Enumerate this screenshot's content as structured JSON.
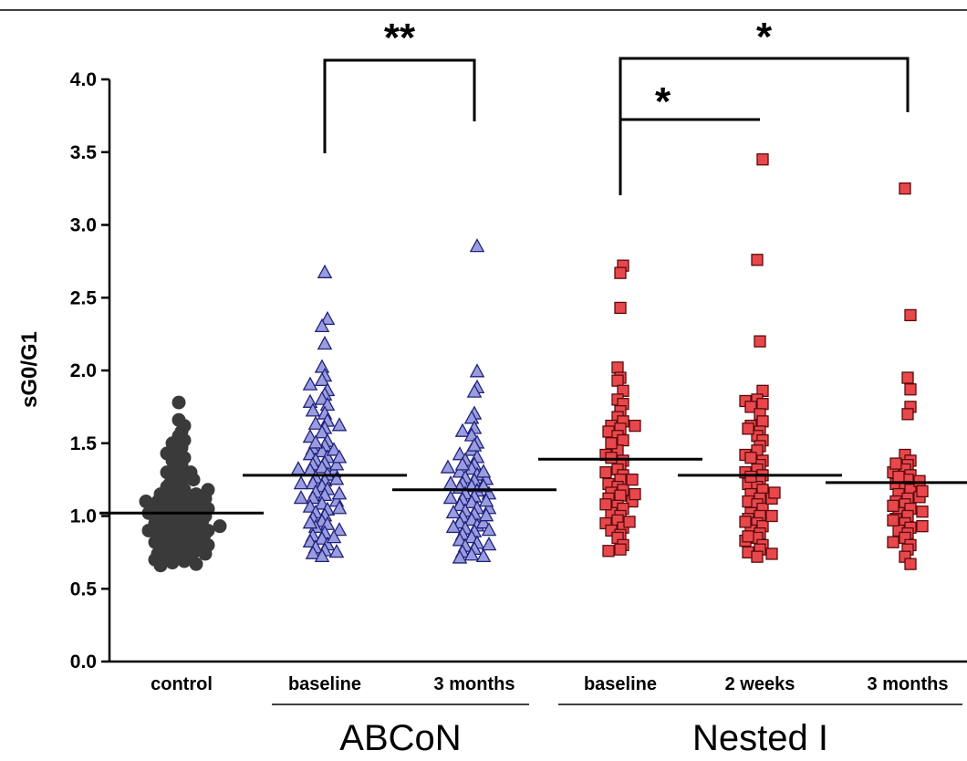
{
  "chart_data": {
    "type": "scatter",
    "ylabel": "sG0/G1",
    "ylim": [
      0,
      4.0
    ],
    "yticks": [
      "0.0",
      "0.5",
      "1.0",
      "1.5",
      "2.0",
      "2.5",
      "3.0",
      "3.5",
      "4.0"
    ],
    "categories": [
      "control",
      "baseline",
      "3 months",
      "baseline",
      "2 weeks",
      "3 months"
    ],
    "groups": [
      {
        "label": "ABCoN",
        "categories": [
          1,
          2
        ]
      },
      {
        "label": "Nested I",
        "categories": [
          3,
          4,
          5
        ]
      }
    ],
    "series": [
      {
        "category": "control",
        "marker": "circle",
        "color": "#3a3a3a",
        "mean": 1.02,
        "values": [
          1.78,
          1.66,
          1.62,
          1.58,
          1.55,
          1.52,
          1.5,
          1.47,
          1.45,
          1.43,
          1.4,
          1.38,
          1.35,
          1.33,
          1.3,
          1.28,
          1.26,
          1.24,
          1.22,
          1.2,
          1.18,
          1.17,
          1.15,
          1.14,
          1.12,
          1.11,
          1.1,
          1.09,
          1.08,
          1.07,
          1.06,
          1.05,
          1.04,
          1.03,
          1.02,
          1.01,
          1.0,
          0.99,
          0.98,
          0.97,
          0.96,
          0.95,
          0.94,
          0.93,
          0.92,
          0.91,
          0.9,
          0.89,
          0.88,
          0.87,
          0.86,
          0.85,
          0.84,
          0.83,
          0.82,
          0.8,
          0.79,
          0.78,
          0.77,
          0.76,
          0.75,
          0.74,
          0.73,
          0.72,
          0.71,
          0.7,
          0.69,
          0.68,
          0.67,
          0.66,
          0.95,
          1.0,
          1.05,
          0.9,
          1.12,
          1.2,
          0.85,
          0.78,
          1.25,
          1.3,
          0.97,
          1.08,
          1.15,
          0.88,
          0.93,
          1.02,
          0.74,
          0.8,
          1.1,
          1.18
        ]
      },
      {
        "category": "baseline",
        "group": "ABCoN",
        "marker": "triangle",
        "color": "#9a9ce0",
        "mean": 1.28,
        "values": [
          2.67,
          2.35,
          2.3,
          2.18,
          2.02,
          1.96,
          1.93,
          1.9,
          1.86,
          1.83,
          1.8,
          1.78,
          1.76,
          1.7,
          1.65,
          1.63,
          1.6,
          1.57,
          1.54,
          1.51,
          1.48,
          1.46,
          1.44,
          1.42,
          1.4,
          1.38,
          1.36,
          1.35,
          1.33,
          1.31,
          1.3,
          1.28,
          1.26,
          1.24,
          1.22,
          1.2,
          1.18,
          1.16,
          1.14,
          1.12,
          1.1,
          1.08,
          1.06,
          1.04,
          1.02,
          1.0,
          0.98,
          0.96,
          0.94,
          0.92,
          0.9,
          0.88,
          0.86,
          0.84,
          0.82,
          0.8,
          0.78,
          0.76,
          0.74,
          0.72,
          1.45,
          1.25,
          1.15,
          1.05,
          0.95,
          1.35,
          1.5,
          1.62,
          1.72,
          0.85,
          0.75,
          1.32,
          1.22,
          1.12,
          1.4
        ]
      },
      {
        "category": "3 months",
        "group": "ABCoN",
        "marker": "triangle",
        "color": "#9a9ce0",
        "mean": 1.18,
        "values": [
          2.85,
          1.99,
          1.88,
          1.85,
          1.7,
          1.67,
          1.6,
          1.58,
          1.55,
          1.5,
          1.45,
          1.42,
          1.4,
          1.38,
          1.35,
          1.32,
          1.3,
          1.28,
          1.26,
          1.24,
          1.22,
          1.2,
          1.19,
          1.17,
          1.15,
          1.13,
          1.11,
          1.09,
          1.07,
          1.05,
          1.03,
          1.01,
          0.99,
          0.97,
          0.95,
          0.93,
          0.91,
          0.89,
          0.87,
          0.85,
          0.83,
          0.81,
          0.79,
          0.77,
          0.75,
          0.73,
          0.71,
          1.25,
          1.15,
          1.05,
          0.95,
          1.35,
          1.1,
          1.0,
          0.9,
          0.8,
          1.2,
          1.3,
          1.48,
          0.72,
          1.12,
          1.02,
          0.92,
          1.22,
          1.33
        ]
      },
      {
        "category": "baseline",
        "group": "Nested I",
        "marker": "square",
        "color": "#e8474c",
        "mean": 1.39,
        "values": [
          2.72,
          2.67,
          2.43,
          2.02,
          1.95,
          1.93,
          1.86,
          1.8,
          1.77,
          1.72,
          1.68,
          1.65,
          1.62,
          1.6,
          1.58,
          1.55,
          1.52,
          1.45,
          1.42,
          1.38,
          1.35,
          1.32,
          1.3,
          1.28,
          1.25,
          1.22,
          1.2,
          1.18,
          1.16,
          1.14,
          1.12,
          1.1,
          1.07,
          1.05,
          1.02,
          1.0,
          0.97,
          0.95,
          0.92,
          0.9,
          0.87,
          0.85,
          0.8,
          0.77,
          0.76,
          1.5,
          1.15,
          1.4,
          1.25,
          1.62,
          0.96,
          1.08
        ]
      },
      {
        "category": "2 weeks",
        "group": "Nested I",
        "marker": "square",
        "color": "#e8474c",
        "mean": 1.28,
        "values": [
          3.45,
          2.76,
          2.2,
          1.86,
          1.8,
          1.79,
          1.77,
          1.75,
          1.7,
          1.65,
          1.62,
          1.58,
          1.55,
          1.52,
          1.48,
          1.45,
          1.42,
          1.38,
          1.35,
          1.32,
          1.3,
          1.28,
          1.25,
          1.22,
          1.2,
          1.18,
          1.15,
          1.12,
          1.1,
          1.08,
          1.05,
          1.02,
          1.0,
          0.98,
          0.95,
          0.93,
          0.9,
          0.88,
          0.85,
          0.83,
          0.8,
          0.77,
          0.75,
          0.72,
          1.4,
          1.12,
          1.27,
          0.96,
          1.6,
          1.0,
          1.16,
          0.86,
          0.74
        ]
      },
      {
        "category": "3 months",
        "group": "Nested I",
        "marker": "square",
        "color": "#e8474c",
        "mean": 1.23,
        "values": [
          3.25,
          2.38,
          1.95,
          1.87,
          1.75,
          1.7,
          1.42,
          1.38,
          1.35,
          1.32,
          1.3,
          1.28,
          1.25,
          1.22,
          1.2,
          1.18,
          1.15,
          1.12,
          1.1,
          1.08,
          1.05,
          1.02,
          1.0,
          0.98,
          0.95,
          0.92,
          0.9,
          0.88,
          0.85,
          0.82,
          0.8,
          0.77,
          0.72,
          0.67,
          1.36,
          1.24,
          1.13,
          1.03,
          0.93,
          1.27,
          1.17,
          1.07,
          0.97
        ]
      }
    ],
    "significance": [
      {
        "label": "**",
        "from": 1,
        "to": 2,
        "y": 4.0
      },
      {
        "label": "*",
        "from": 3,
        "to": 5,
        "y": 4.0
      },
      {
        "label": "*",
        "from": 3,
        "to": 4,
        "y": 3.7
      }
    ]
  }
}
